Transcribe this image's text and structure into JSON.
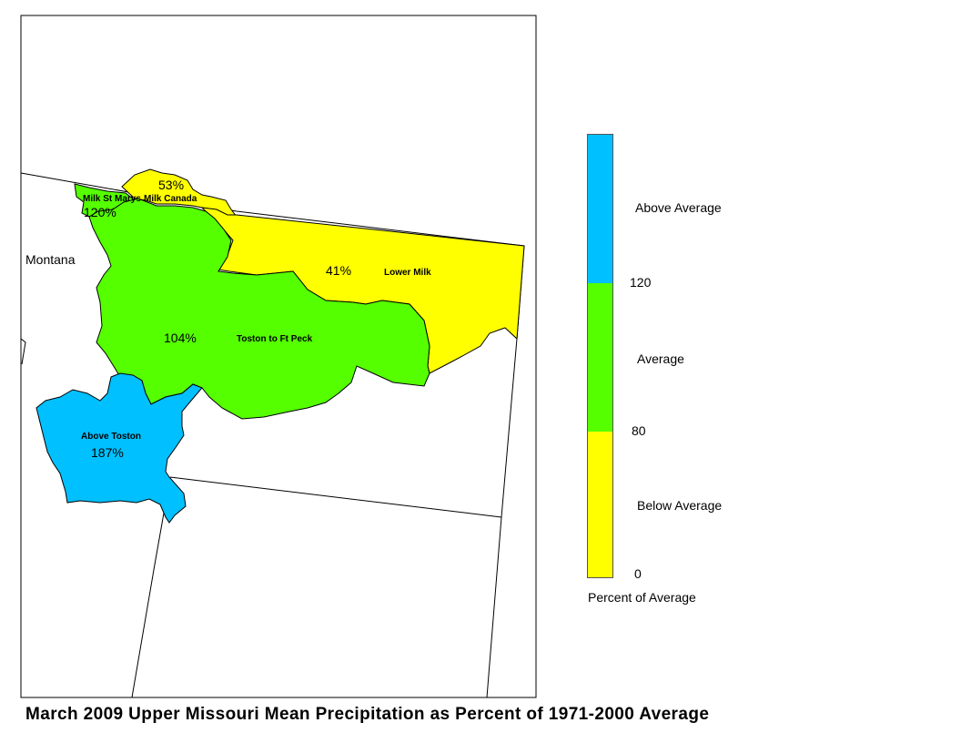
{
  "title": "March 2009 Upper Missouri Mean Precipitation as Percent of 1971-2000 Average",
  "state_label": "Montana",
  "basins": [
    {
      "id": "above-toston",
      "name": "Above Toston",
      "percent": "187%",
      "category": "Above Average"
    },
    {
      "id": "toston-to-ft-peck",
      "name": "Toston to Ft Peck",
      "percent": "104%",
      "category": "Average"
    },
    {
      "id": "lower-milk",
      "name": "Lower Milk",
      "percent": "41%",
      "category": "Below Average"
    },
    {
      "id": "milk-st-marys",
      "name": "Milk St Marys",
      "percent": "120%",
      "category": "Average"
    },
    {
      "id": "milk-canada",
      "name": "Milk Canada",
      "percent": "53%",
      "category": "Below Average"
    }
  ],
  "legend": {
    "caption": "Percent of Average",
    "categories": [
      {
        "label": "Above Average",
        "color": "#00c0ff"
      },
      {
        "label": "Average",
        "color": "#55ff00"
      },
      {
        "label": "Below Average",
        "color": "#ffff00"
      }
    ],
    "ticks": [
      "120",
      "80",
      "0"
    ]
  }
}
